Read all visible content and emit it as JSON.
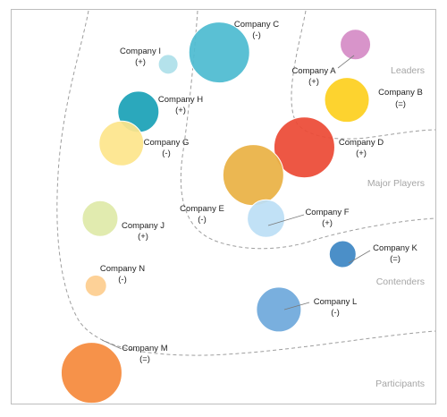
{
  "chart_data": {
    "type": "bubble",
    "title": "",
    "grid": false,
    "legend": "none",
    "segments": [
      {
        "id": "leaders",
        "label": "Leaders"
      },
      {
        "id": "major",
        "label": "Major Players"
      },
      {
        "id": "contenders",
        "label": "Contenders"
      },
      {
        "id": "participants",
        "label": "Participants"
      }
    ],
    "companies": [
      {
        "id": "c",
        "name": "Company C",
        "change": "(-)",
        "x": 0.49,
        "y": 0.89,
        "size": 34,
        "color": "#4dbbd1"
      },
      {
        "id": "i",
        "name": "Company I",
        "change": "(+)",
        "x": 0.37,
        "y": 0.86,
        "size": 11,
        "color": "#aee0ea"
      },
      {
        "id": "a",
        "name": "Company A",
        "change": "(+)",
        "x": 0.81,
        "y": 0.91,
        "size": 17,
        "color": "#d58cc6"
      },
      {
        "id": "b",
        "name": "Company B",
        "change": "(=)",
        "x": 0.79,
        "y": 0.77,
        "size": 25,
        "color": "#fdd01f"
      },
      {
        "id": "h",
        "name": "Company H",
        "change": "(+)",
        "x": 0.3,
        "y": 0.74,
        "size": 23,
        "color": "#1ba1b7"
      },
      {
        "id": "g",
        "name": "Company G",
        "change": "(-)",
        "x": 0.26,
        "y": 0.66,
        "size": 25,
        "color": "#fde58c"
      },
      {
        "id": "d",
        "name": "Company D",
        "change": "(+)",
        "x": 0.69,
        "y": 0.65,
        "size": 34,
        "color": "#ec4a36"
      },
      {
        "id": "e",
        "name": "Company E",
        "change": "(-)",
        "x": 0.57,
        "y": 0.58,
        "size": 34,
        "color": "#e9b245"
      },
      {
        "id": "f",
        "name": "Company F",
        "change": "(+)",
        "x": 0.6,
        "y": 0.47,
        "size": 21,
        "color": "#bcdff5"
      },
      {
        "id": "j",
        "name": "Company J",
        "change": "(+)",
        "x": 0.21,
        "y": 0.47,
        "size": 20,
        "color": "#dfeaa9"
      },
      {
        "id": "k",
        "name": "Company K",
        "change": "(=)",
        "x": 0.78,
        "y": 0.38,
        "size": 15,
        "color": "#3d86c4"
      },
      {
        "id": "n",
        "name": "Company N",
        "change": "(-)",
        "x": 0.2,
        "y": 0.3,
        "size": 12,
        "color": "#fdcd8f"
      },
      {
        "id": "l",
        "name": "Company L",
        "change": "(-)",
        "x": 0.63,
        "y": 0.24,
        "size": 25,
        "color": "#6fa9dc"
      },
      {
        "id": "m",
        "name": "Company M",
        "change": "(=)",
        "x": 0.19,
        "y": 0.08,
        "size": 34,
        "color": "#f58a3c"
      }
    ]
  }
}
